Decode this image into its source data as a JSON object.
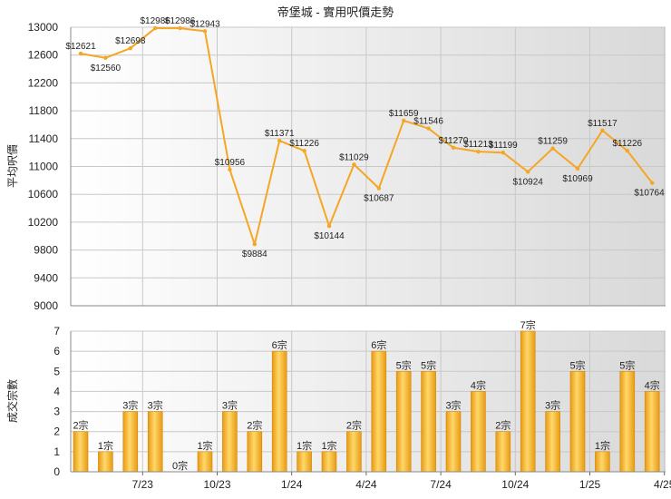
{
  "chart_data": [
    {
      "type": "line",
      "title": "帝堡城 - 實用呎價走勢",
      "ylabel": "平均呎價",
      "ylim": [
        9000,
        13000
      ],
      "yticks": [
        9000,
        9400,
        9800,
        10200,
        10600,
        11000,
        11400,
        11800,
        12200,
        12600,
        13000
      ],
      "grid": true,
      "color": "#f5a623",
      "data_labels": [
        "$12621",
        "$12560",
        "$12698",
        "$12986",
        "$12986",
        "$12943",
        "$10956",
        "$9884",
        "$11371",
        "$11226",
        "$10144",
        "$11029",
        "$10687",
        "$11659",
        "$11546",
        "$11270",
        "$11213",
        "$11199",
        "$10924",
        "$11259",
        "$10969",
        "$11517",
        "$11226",
        "$10764"
      ],
      "values": [
        12621,
        12560,
        12698,
        12986,
        12986,
        12943,
        10956,
        9884,
        11371,
        11226,
        10144,
        11029,
        10687,
        11659,
        11546,
        11270,
        11213,
        11199,
        10924,
        11259,
        10969,
        11517,
        11226,
        10764
      ]
    },
    {
      "type": "bar",
      "ylabel": "成交宗數",
      "ylim": [
        0,
        7
      ],
      "yticks": [
        0,
        1,
        2,
        3,
        4,
        5,
        6,
        7
      ],
      "grid": true,
      "xticks": [
        "7/23",
        "10/23",
        "1/24",
        "4/24",
        "7/24",
        "10/24",
        "1/25",
        "4/25"
      ],
      "data_labels": [
        "2宗",
        "1宗",
        "3宗",
        "3宗",
        "0宗",
        "1宗",
        "3宗",
        "2宗",
        "6宗",
        "1宗",
        "1宗",
        "2宗",
        "6宗",
        "5宗",
        "5宗",
        "3宗",
        "4宗",
        "2宗",
        "7宗",
        "3宗",
        "5宗",
        "1宗",
        "5宗",
        "4宗"
      ],
      "values": [
        2,
        1,
        3,
        3,
        0,
        1,
        3,
        2,
        6,
        1,
        1,
        2,
        6,
        5,
        5,
        3,
        4,
        2,
        7,
        3,
        5,
        1,
        5,
        4
      ]
    }
  ]
}
